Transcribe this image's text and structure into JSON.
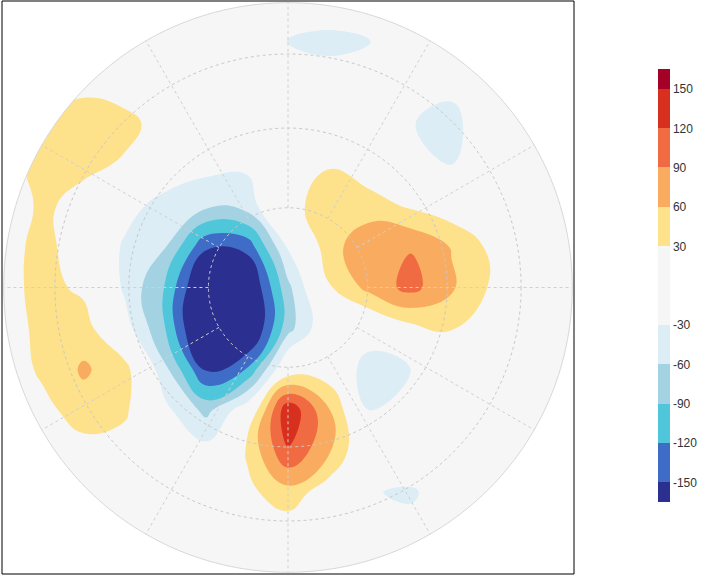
{
  "chart_data": {
    "type": "contour",
    "tick_labels": false,
    "cells": [
      [
        0,
        0,
        0,
        0,
        0,
        0,
        0,
        -6,
        -8,
        -6,
        0,
        0,
        0,
        0,
        0
      ],
      [
        0,
        0,
        4,
        3,
        0,
        -5,
        -15,
        -31,
        -39,
        -31,
        -21,
        -13,
        -3,
        0,
        0
      ],
      [
        7,
        16,
        22,
        18,
        10,
        3,
        -5,
        -11,
        -13,
        -15,
        -23,
        -24,
        -8,
        0,
        0
      ],
      [
        15,
        33,
        44,
        37,
        20,
        7,
        0,
        0,
        4,
        -6,
        -29,
        -37,
        -12,
        0,
        0
      ],
      [
        18,
        39,
        36,
        27,
        0,
        -20,
        -25,
        12,
        27,
        9,
        -17,
        -30,
        -10,
        0,
        0
      ],
      [
        13,
        35,
        20,
        -15,
        -45,
        -53,
        -45,
        13,
        54,
        44,
        25,
        10,
        5,
        0,
        0
      ],
      [
        18,
        39,
        13,
        -35,
        -58,
        -145,
        -140,
        -26,
        47,
        83,
        88,
        58,
        22,
        5,
        0
      ],
      [
        17,
        41,
        23,
        -35,
        -93,
        -201,
        -192,
        -68,
        27,
        70,
        100,
        65,
        25,
        5,
        0
      ],
      [
        11,
        40,
        45,
        -15,
        -90,
        -217,
        -200,
        -71,
        1,
        -7,
        20,
        31,
        12,
        0,
        0
      ],
      [
        5,
        37,
        64,
        43,
        -54,
        -153,
        -118,
        7,
        10,
        -48,
        -30,
        7,
        0,
        0,
        0
      ],
      [
        3,
        19,
        48,
        36,
        -22,
        -69,
        -8,
        145,
        63,
        -30,
        -24,
        0,
        0,
        0,
        0
      ],
      [
        0,
        6,
        16,
        14,
        -7,
        -18,
        34,
        117,
        64,
        -11,
        -16,
        -7,
        0,
        0,
        0
      ],
      [
        0,
        0,
        3,
        3,
        0,
        -5,
        22,
        49,
        11,
        -29,
        -32,
        -22,
        -10,
        0,
        0
      ],
      [
        0,
        0,
        0,
        0,
        0,
        0,
        0,
        8,
        -13,
        -23,
        -25,
        -17,
        -7,
        0,
        0
      ],
      [
        0,
        0,
        0,
        0,
        0,
        0,
        0,
        0,
        0,
        0,
        0,
        0,
        0,
        0,
        0
      ]
    ],
    "colorbar": {
      "range": [
        -165,
        165
      ],
      "ticks": [
        -150,
        -120,
        -90,
        -60,
        -30,
        30,
        60,
        90,
        120,
        150
      ]
    },
    "colors": [
      "#2b2f8f",
      "#3f6cc6",
      "#4fc6da",
      "#a3d2e3",
      "#dcedf5",
      "#f6f6f6",
      "#fde18b",
      "#f9ac5f",
      "#f06b41",
      "#d7301f",
      "#a50026"
    ]
  }
}
